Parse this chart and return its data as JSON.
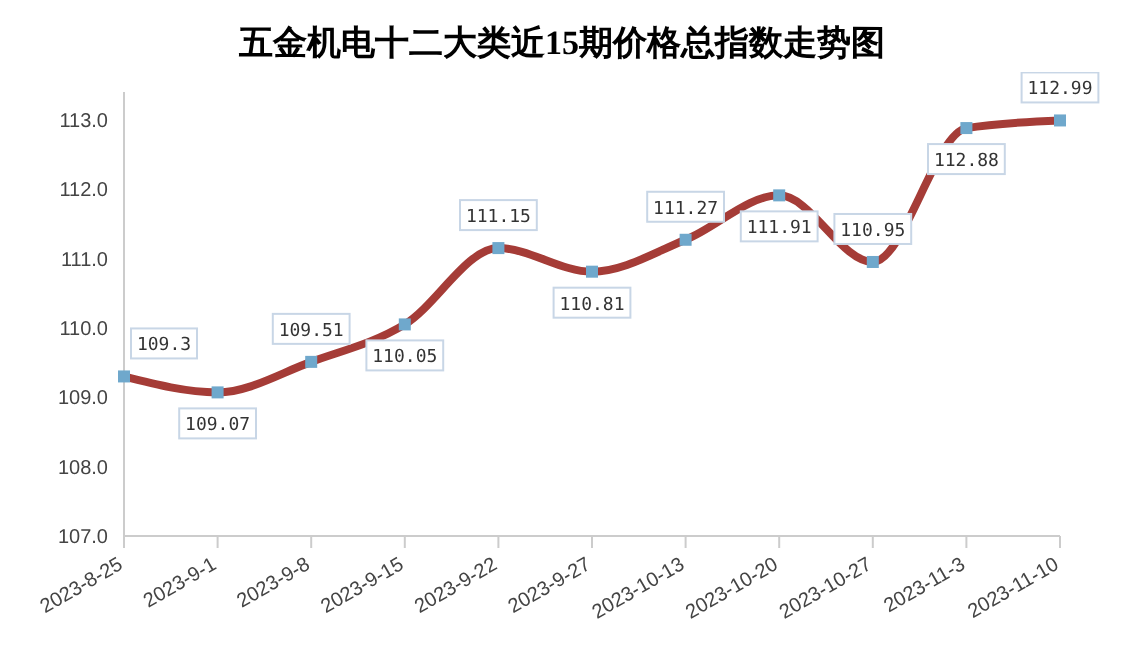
{
  "chart_data": {
    "type": "line",
    "title": "五金机电十二大类近15期价格总指数走势图",
    "categories": [
      "2023-8-25",
      "2023-9-1",
      "2023-9-8",
      "2023-9-15",
      "2023-9-22",
      "2023-9-27",
      "2023-10-13",
      "2023-10-20",
      "2023-10-27",
      "2023-11-3",
      "2023-11-10"
    ],
    "series": [
      {
        "color": "#a53c37",
        "values": [
          109.3,
          109.07,
          109.51,
          110.05,
          111.15,
          110.81,
          111.27,
          111.91,
          110.95,
          112.88,
          112.99
        ]
      }
    ],
    "ylim": [
      107,
      113.4
    ],
    "yticks": [
      {
        "value": 107,
        "label": "107.0"
      },
      {
        "value": 108,
        "label": "108.0"
      },
      {
        "value": 109,
        "label": "109.0"
      },
      {
        "value": 110,
        "label": "110.0"
      },
      {
        "value": 111,
        "label": "111.0"
      },
      {
        "value": 112,
        "label": "112.0"
      },
      {
        "value": 113,
        "label": "113.0"
      }
    ],
    "data_labels": true,
    "marker": "square",
    "grid": false,
    "legend": false
  }
}
